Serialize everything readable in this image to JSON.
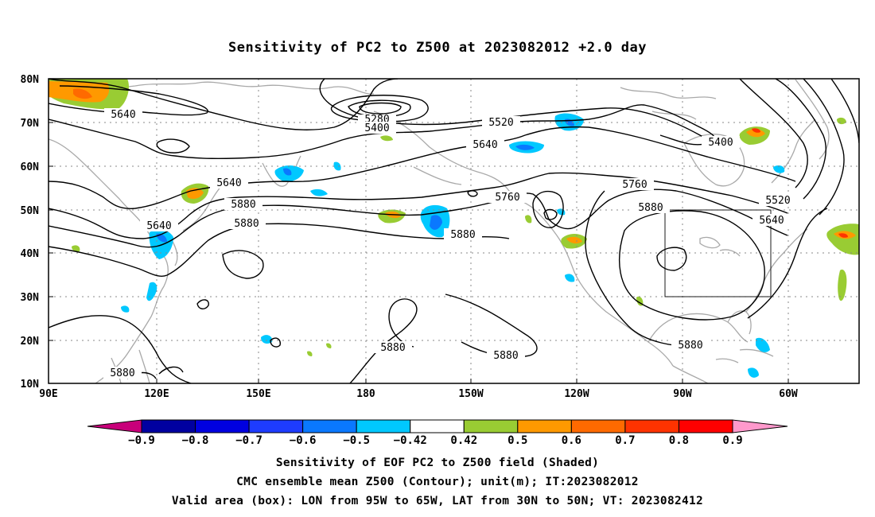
{
  "title": "Sensitivity of PC2 to Z500 at 2023082012 +2.0 day",
  "lat_labels": [
    "80N",
    "70N",
    "60N",
    "50N",
    "40N",
    "30N",
    "20N",
    "10N"
  ],
  "lon_labels": [
    "90E",
    "120E",
    "150E",
    "180",
    "150W",
    "120W",
    "90W",
    "60W"
  ],
  "contour_labels": [
    "5640",
    "5280",
    "5400",
    "5520",
    "5640",
    "5400",
    "5640",
    "5760",
    "5760",
    "5880",
    "5520",
    "5640",
    "5640",
    "5880",
    "5880",
    "5880",
    "5880",
    "5880",
    "5880"
  ],
  "colorbar": {
    "labels": [
      "−0.9",
      "−0.8",
      "−0.7",
      "−0.6",
      "−0.5",
      "−0.42",
      "0.42",
      "0.5",
      "0.6",
      "0.7",
      "0.8",
      "0.9"
    ],
    "colors": [
      "#0000a0",
      "#0000e0",
      "#1e3cff",
      "#0a78ff",
      "#00c8ff",
      "#ffffff",
      "#99cc33",
      "#ff9900",
      "#ff6a00",
      "#ff3300",
      "#ff0000"
    ],
    "low_color": "#c8007a",
    "high_color": "#ff99cc"
  },
  "valid_box": {
    "lon_from": "95W",
    "lon_to": "65W",
    "lat_from": "30N",
    "lat_to": "50N"
  },
  "captions": [
    "Sensitivity of EOF PC2 to Z500 field (Shaded)",
    "CMC ensemble mean Z500 (Contour); unit(m); IT:2023082012",
    "Valid area (box): LON from 95W to 65W, LAT from 30N to 50N; VT: 2023082412"
  ]
}
